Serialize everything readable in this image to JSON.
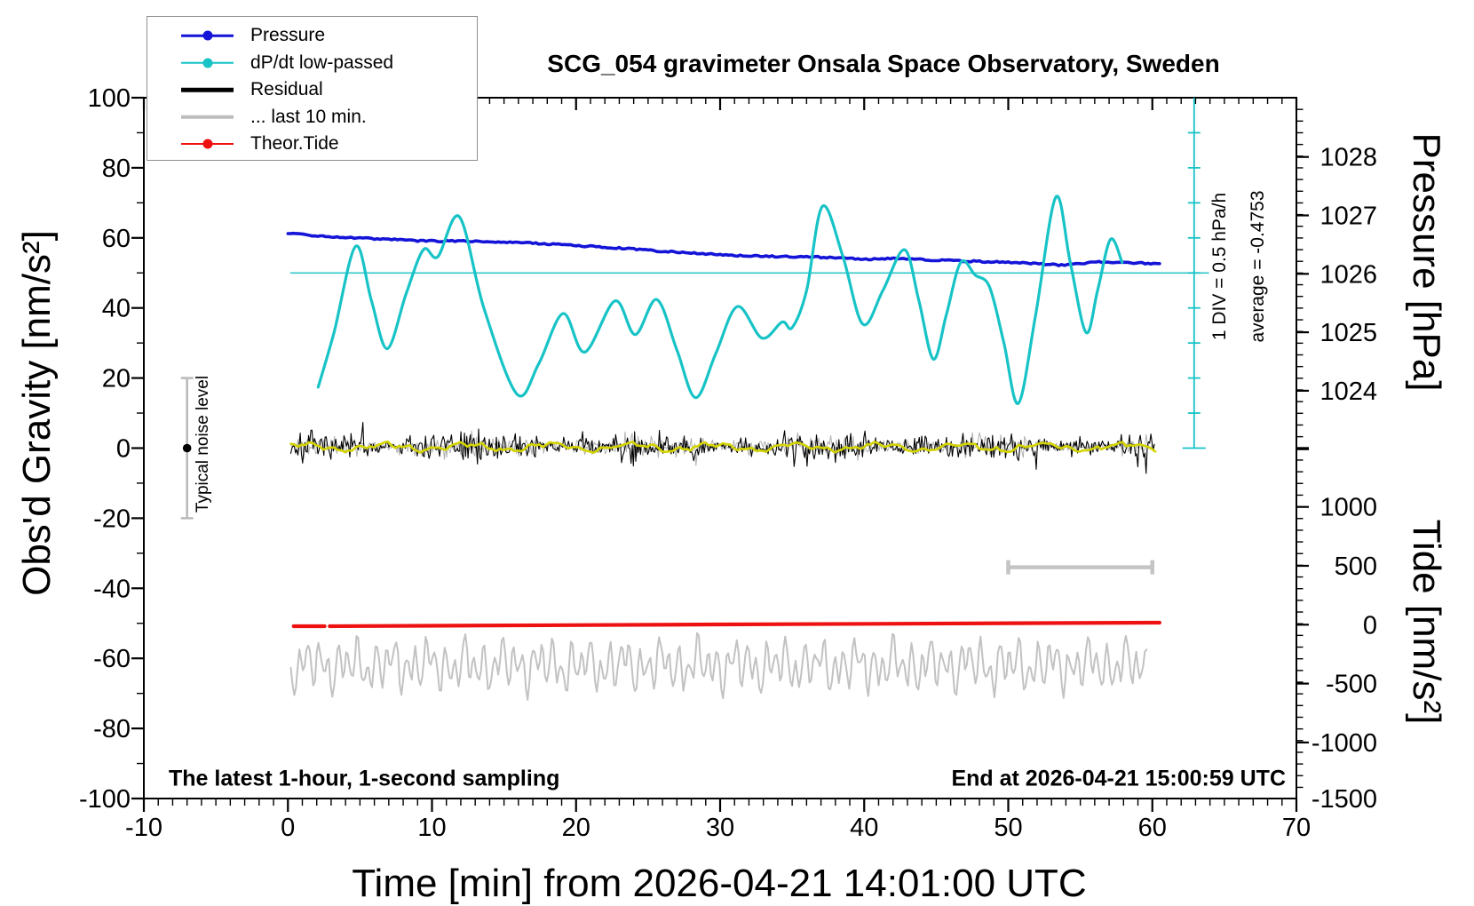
{
  "figure": {
    "title": "SCG_054 gravimeter Onsala Space Observatory, Sweden",
    "background_color": "#ffffff"
  },
  "annotations": {
    "sampling_note": "The latest 1-hour, 1-second sampling",
    "end_time_note": "End at 2026-04-21 15:00:59 UTC",
    "noise_bar_label": "Typical noise level",
    "dpdt_scale_label": "1 DIV = 0.5 hPa/h",
    "dpdt_average_label": "average = -0.4753"
  },
  "legend": {
    "items": [
      {
        "label": "Pressure",
        "color": "#1414d8",
        "line_width": 2.5,
        "dot": true
      },
      {
        "label": "dP/dt low-passed",
        "color": "#17c3c6",
        "line_width": 2.5,
        "dot": true
      },
      {
        "label": "Residual",
        "color": "#000000",
        "line_width": 4.5,
        "dot": false
      },
      {
        "label": "... last 10 min.",
        "color": "#bdbdbd",
        "line_width": 4.5,
        "dot": false
      },
      {
        "label": "Theor.Tide",
        "color": "#ee1111",
        "line_width": 2,
        "dot": true
      }
    ]
  },
  "axes": {
    "x": {
      "title": "Time [min] from 2026-04-21 14:01:00 UTC",
      "min": -10,
      "max": 70,
      "major_ticks": [
        -10,
        0,
        10,
        20,
        30,
        40,
        50,
        60,
        70
      ],
      "minor_step_min": 1
    },
    "y_left": {
      "title": "Obs'd Gravity [nm/s²]",
      "min": -100,
      "max": 100,
      "major_ticks": [
        -100,
        -80,
        -60,
        -40,
        -20,
        0,
        20,
        40,
        60,
        80,
        100
      ],
      "minor_step": 10
    },
    "y_right_pressure": {
      "title": "Pressure [hPa]",
      "tick_labels": [
        1028,
        1027,
        1026,
        1025,
        1024
      ],
      "minor_step_hPa": 0.2
    },
    "y_right_tide": {
      "title": "Tide [nm/s²]",
      "tick_labels": [
        1000,
        500,
        0,
        -500,
        -1000,
        -1500
      ],
      "minor_step": 100
    }
  },
  "chart_data": {
    "type": "line",
    "title": "SCG_054 gravimeter Onsala Space Observatory, Sweden",
    "xlabel": "Time [min] from 2026-04-21 14:01:00 UTC",
    "x_range_min": [
      -10,
      70
    ],
    "gravity_axis_range_nms2": [
      -100,
      100
    ],
    "grid": false,
    "legend_position": "top-left",
    "series": [
      {
        "name": "Pressure",
        "color": "#1414d8",
        "axis": "pressure_hPa",
        "style": "thick fuzzy line",
        "points": [
          [
            0,
            1026.69
          ],
          [
            1.5,
            1026.66
          ],
          [
            3,
            1026.63
          ],
          [
            5,
            1026.61
          ],
          [
            7,
            1026.59
          ],
          [
            9,
            1026.565
          ],
          [
            11,
            1026.56
          ],
          [
            13,
            1026.56
          ],
          [
            15,
            1026.545
          ],
          [
            17,
            1026.525
          ],
          [
            19,
            1026.5
          ],
          [
            21,
            1026.47
          ],
          [
            23,
            1026.44
          ],
          [
            25,
            1026.405
          ],
          [
            27,
            1026.37
          ],
          [
            29,
            1026.345
          ],
          [
            31,
            1026.315
          ],
          [
            33,
            1026.3
          ],
          [
            35,
            1026.295
          ],
          [
            37,
            1026.285
          ],
          [
            39,
            1026.265
          ],
          [
            40.5,
            1026.25
          ],
          [
            42,
            1026.26
          ],
          [
            43.5,
            1026.25
          ],
          [
            45,
            1026.235
          ],
          [
            47,
            1026.22
          ],
          [
            49,
            1026.205
          ],
          [
            51,
            1026.19
          ],
          [
            52.5,
            1026.165
          ],
          [
            53.5,
            1026.15
          ],
          [
            54.5,
            1026.165
          ],
          [
            55.5,
            1026.19
          ],
          [
            56.5,
            1026.205
          ],
          [
            57.5,
            1026.195
          ],
          [
            58.5,
            1026.185
          ],
          [
            59.5,
            1026.18
          ],
          [
            60.5,
            1026.175
          ]
        ]
      },
      {
        "name": "dP/dt low-passed",
        "color": "#17c3c6",
        "axis": "dpdt_hPa_per_h",
        "style": "smooth line",
        "scale_note": "plotted against gravity axis: 0 hPa/h at gravity 50 nm/s², 1 DIV = 0.5 hPa/h = 10 gravity units",
        "points": [
          [
            2.1,
            -1.63
          ],
          [
            3.2,
            -0.85
          ],
          [
            4.7,
            0.38
          ],
          [
            5.8,
            -0.4
          ],
          [
            6.9,
            -1.08
          ],
          [
            8.2,
            -0.3
          ],
          [
            9.4,
            0.33
          ],
          [
            10.4,
            0.23
          ],
          [
            11.9,
            0.8
          ],
          [
            13.6,
            -0.5
          ],
          [
            15.9,
            -1.73
          ],
          [
            17.4,
            -1.3
          ],
          [
            19.1,
            -0.58
          ],
          [
            20.6,
            -1.13
          ],
          [
            22.7,
            -0.4
          ],
          [
            24.1,
            -0.88
          ],
          [
            25.6,
            -0.38
          ],
          [
            27.0,
            -1.1
          ],
          [
            28.3,
            -1.78
          ],
          [
            29.7,
            -1.15
          ],
          [
            31.2,
            -0.48
          ],
          [
            32.9,
            -0.93
          ],
          [
            34.3,
            -0.7
          ],
          [
            35.0,
            -0.78
          ],
          [
            36.0,
            -0.25
          ],
          [
            37.1,
            0.95
          ],
          [
            38.5,
            0.25
          ],
          [
            39.9,
            -0.73
          ],
          [
            41.3,
            -0.25
          ],
          [
            42.8,
            0.33
          ],
          [
            43.8,
            -0.4
          ],
          [
            44.8,
            -1.23
          ],
          [
            45.7,
            -0.6
          ],
          [
            46.7,
            0.15
          ],
          [
            47.7,
            -0.03
          ],
          [
            48.7,
            -0.2
          ],
          [
            49.7,
            -1.0
          ],
          [
            50.7,
            -1.86
          ],
          [
            51.9,
            -0.6
          ],
          [
            53.3,
            1.08
          ],
          [
            54.3,
            0.15
          ],
          [
            55.4,
            -0.85
          ],
          [
            56.2,
            -0.25
          ],
          [
            57.1,
            0.48
          ],
          [
            57.9,
            0.15
          ]
        ]
      },
      {
        "name": "Residual",
        "color": "#000000",
        "axis": "gravity_nms2",
        "style": "noise",
        "mean_nms2": 0.5,
        "typical_amplitude_nms2": 5,
        "max_spike_nms2": 11.5,
        "t_range_min": [
          0.2,
          60.2
        ]
      },
      {
        "name": "residual smoothed (yellow, unlabeled)",
        "color": "#d4d400",
        "axis": "gravity_nms2",
        "style": "slow wiggle over residual",
        "mean_nms2": 0.3,
        "amplitude_nms2": 1.2,
        "t_range_min": [
          0.2,
          60.2
        ]
      },
      {
        "name": "... last 10 min.",
        "color": "#c2c2c2",
        "axis": "gravity_display_nms2",
        "style": "oscillating line",
        "center_nms2": -62,
        "amplitude_nms2": 10,
        "t_range_min": [
          0.2,
          59.6
        ],
        "note": "residual of the last 10 minutes displayed stretched across the hour; on tide axis centered near -350 nm/s²"
      },
      {
        "name": "Theor.Tide",
        "color": "#ee1111",
        "axis": "tide_nms2",
        "style": "thick nearly flat line",
        "points": [
          [
            0.4,
            -13
          ],
          [
            2.55,
            -13
          ],
          [
            2.9,
            -12.5
          ],
          [
            30,
            2
          ],
          [
            60.5,
            17
          ]
        ],
        "gap_t_min": [
          2.55,
          2.9
        ]
      }
    ],
    "reference_lines": [
      {
        "name": "dP/dt zero line",
        "color": "#31c8c8",
        "gravity_nms2": 50,
        "t_range_min": [
          0.2,
          63.9
        ]
      }
    ],
    "scale_markers": [
      {
        "name": "typical noise level bar",
        "color": "#b9b9b9",
        "t_min": -7,
        "gravity_range_nms2": [
          -20,
          20
        ],
        "dot_at_nms2": 0
      },
      {
        "name": "dP/dt DIV scale bar",
        "color": "#17c3c6",
        "t_min": 62.9,
        "gravity_range_nms2": [
          0,
          100
        ],
        "divisions": 10,
        "div_value": "0.5 hPa/h"
      },
      {
        "name": "last-10-min span bar",
        "color": "#c4c4c4",
        "t_range_min": [
          50,
          60
        ],
        "gravity_nms2": -34
      }
    ],
    "pressure_average_slope_hPa_per_h": -0.4753
  }
}
